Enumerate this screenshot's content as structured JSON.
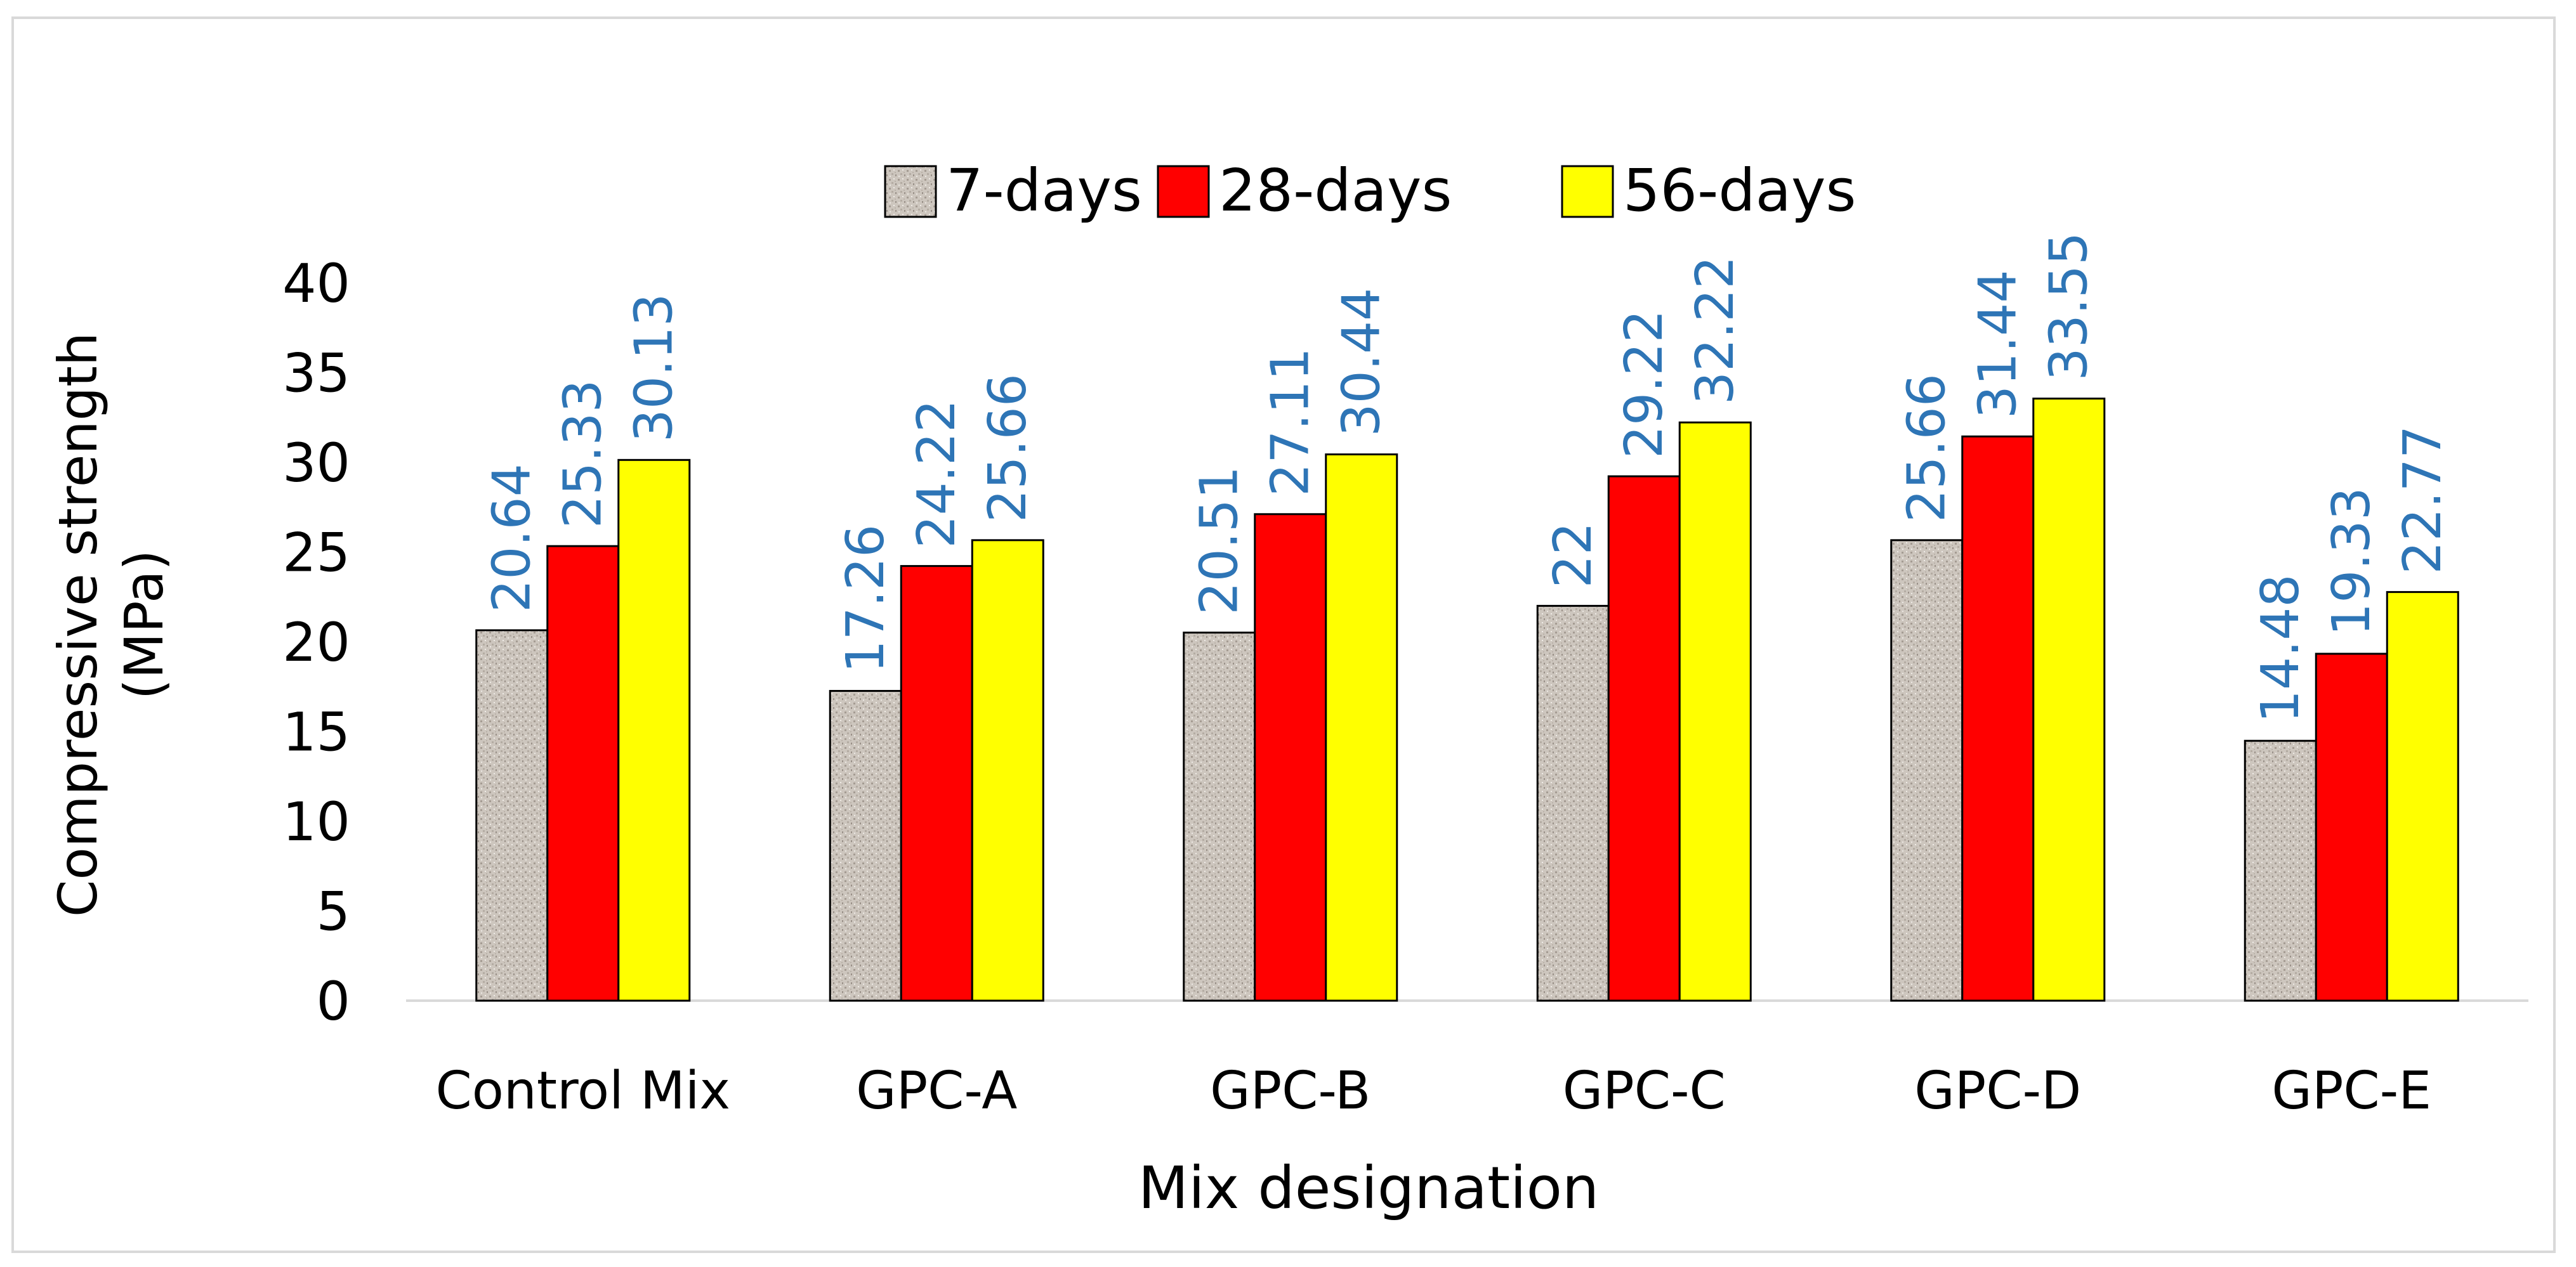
{
  "chart_data": {
    "type": "bar",
    "title": "",
    "xlabel": "Mix designation",
    "ylabel": "Compressive strength (MPa)",
    "ylabel_lines": [
      "Compressive strength",
      "(MPa)"
    ],
    "ylim": [
      0,
      40
    ],
    "yticks": [
      0,
      5,
      10,
      15,
      20,
      25,
      30,
      35,
      40
    ],
    "grid": false,
    "legend_position": "top",
    "categories": [
      "Control Mix",
      "GPC-A",
      "GPC-B",
      "GPC-C",
      "GPC-D",
      "GPC-E"
    ],
    "series": [
      {
        "name": "7-days",
        "color": "#cdc6be",
        "pattern": "speckled",
        "values": [
          20.64,
          17.26,
          20.51,
          22,
          25.66,
          14.48
        ]
      },
      {
        "name": "28-days",
        "color": "#ff0000",
        "values": [
          25.33,
          24.22,
          27.11,
          29.22,
          31.44,
          19.33
        ]
      },
      {
        "name": "56-days",
        "color": "#ffff00",
        "values": [
          30.13,
          25.66,
          30.44,
          32.22,
          33.55,
          22.77
        ]
      }
    ],
    "data_label_color": "#2e75b6",
    "data_labels": {
      "7-days": [
        "20.64",
        "17.26",
        "20.51",
        "22",
        "25.66",
        "14.48"
      ],
      "28-days": [
        "25.33",
        "24.22",
        "27.11",
        "29.22",
        "31.44",
        "19.33"
      ],
      "56-days": [
        "30.13",
        "25.66",
        "30.44",
        "32.22",
        "33.55",
        "22.77"
      ]
    }
  }
}
